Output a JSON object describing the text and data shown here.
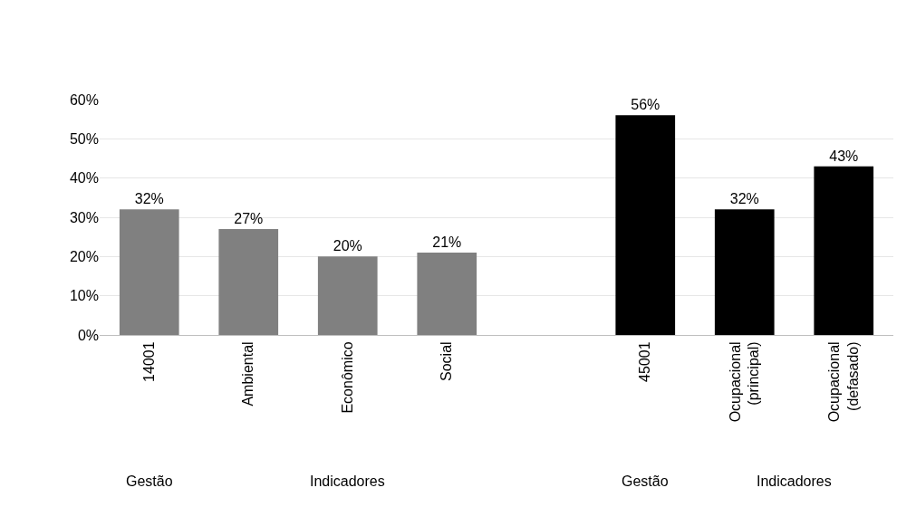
{
  "chart_data": {
    "type": "bar",
    "categories": [
      "14001",
      "Ambiental",
      "Econômico",
      "Social",
      null,
      "45001",
      "Ocupacional (principal)",
      "Ocupacional (defasado)"
    ],
    "values": [
      32,
      27,
      20,
      21,
      null,
      56,
      32,
      43
    ],
    "colors": [
      "#808080",
      "#808080",
      "#808080",
      "#808080",
      null,
      "#000000",
      "#000000",
      "#000000"
    ],
    "value_labels": [
      "32%",
      "27%",
      "20%",
      "21%",
      null,
      "56%",
      "32%",
      "43%"
    ],
    "ylim": [
      0,
      60
    ],
    "yticks": [
      {
        "value": 0,
        "label": "0%"
      },
      {
        "value": 10,
        "label": "10%"
      },
      {
        "value": 20,
        "label": "20%"
      },
      {
        "value": 30,
        "label": "30%"
      },
      {
        "value": 40,
        "label": "40%"
      },
      {
        "value": 50,
        "label": "50%"
      },
      {
        "value": 60,
        "label": "60%"
      }
    ],
    "grid": "y",
    "legend": false,
    "annotations": [
      "Gestão",
      "Indicadores",
      "Gestão",
      "Indicadores"
    ]
  }
}
